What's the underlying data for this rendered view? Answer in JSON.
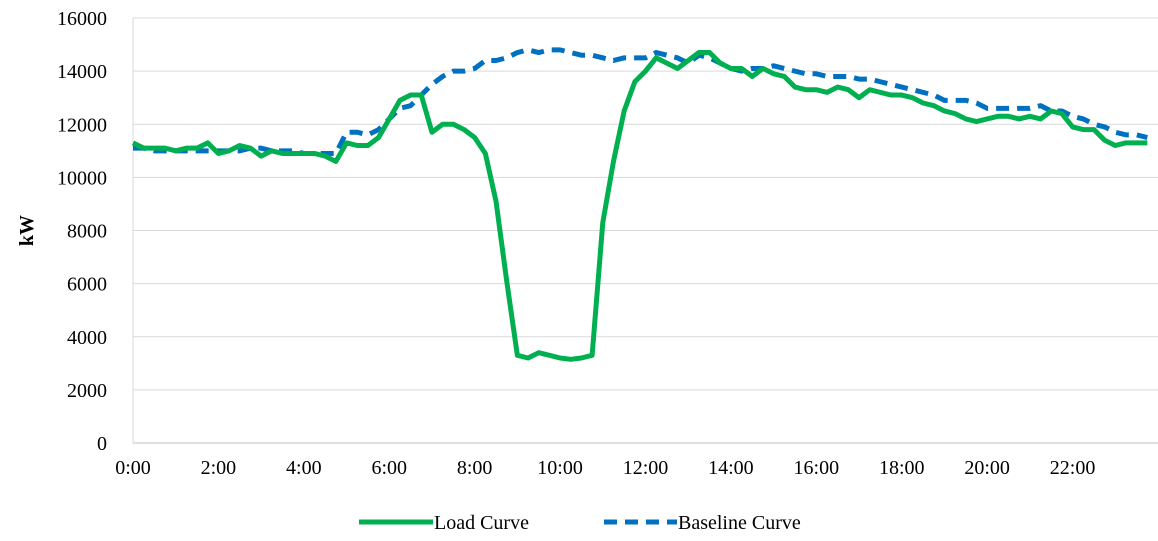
{
  "chart_data": {
    "type": "line",
    "title": "",
    "xlabel": "",
    "ylabel": "kW",
    "ylim": [
      0,
      16000
    ],
    "yticks": [
      0,
      2000,
      4000,
      6000,
      8000,
      10000,
      12000,
      14000,
      16000
    ],
    "xlim_hours": [
      0,
      24
    ],
    "xticks": [
      "0:00",
      "2:00",
      "4:00",
      "6:00",
      "8:00",
      "10:00",
      "12:00",
      "14:00",
      "16:00",
      "18:00",
      "20:00",
      "22:00"
    ],
    "grid": "horizontal",
    "legend_position": "bottom",
    "x": [
      "0:00",
      "0:15",
      "0:30",
      "0:45",
      "1:00",
      "1:15",
      "1:30",
      "1:45",
      "2:00",
      "2:15",
      "2:30",
      "2:45",
      "3:00",
      "3:15",
      "3:30",
      "3:45",
      "4:00",
      "4:15",
      "4:30",
      "4:45",
      "5:00",
      "5:15",
      "5:30",
      "5:45",
      "6:00",
      "6:15",
      "6:30",
      "6:45",
      "7:00",
      "7:15",
      "7:30",
      "7:45",
      "8:00",
      "8:15",
      "8:30",
      "8:45",
      "9:00",
      "9:15",
      "9:30",
      "9:45",
      "10:00",
      "10:15",
      "10:30",
      "10:45",
      "11:00",
      "11:15",
      "11:30",
      "11:45",
      "12:00",
      "12:15",
      "12:30",
      "12:45",
      "13:00",
      "13:15",
      "13:30",
      "13:45",
      "14:00",
      "14:15",
      "14:30",
      "14:45",
      "15:00",
      "15:15",
      "15:30",
      "15:45",
      "16:00",
      "16:15",
      "16:30",
      "16:45",
      "17:00",
      "17:15",
      "17:30",
      "17:45",
      "18:00",
      "18:15",
      "18:30",
      "18:45",
      "19:00",
      "19:15",
      "19:30",
      "19:45",
      "20:00",
      "20:15",
      "20:30",
      "20:45",
      "21:00",
      "21:15",
      "21:30",
      "21:45",
      "22:00",
      "22:15",
      "22:30",
      "22:45",
      "23:00",
      "23:15",
      "23:30",
      "23:45"
    ],
    "series": [
      {
        "name": "Load Curve",
        "color": "#00b050",
        "style": "solid",
        "values": [
          11300,
          11100,
          11100,
          11100,
          11000,
          11100,
          11100,
          11300,
          10900,
          11000,
          11200,
          11100,
          10800,
          11000,
          10900,
          10900,
          10900,
          10900,
          10800,
          10600,
          11300,
          11200,
          11200,
          11500,
          12200,
          12900,
          13100,
          13100,
          11700,
          12000,
          12000,
          11800,
          11500,
          10900,
          9100,
          6100,
          3300,
          3200,
          3400,
          3300,
          3200,
          3150,
          3200,
          3300,
          8300,
          10600,
          12500,
          13600,
          14000,
          14500,
          14300,
          14100,
          14400,
          14700,
          14700,
          14300,
          14100,
          14100,
          13800,
          14100,
          13900,
          13800,
          13400,
          13300,
          13300,
          13200,
          13400,
          13300,
          13000,
          13300,
          13200,
          13100,
          13100,
          13000,
          12800,
          12700,
          12500,
          12400,
          12200,
          12100,
          12200,
          12300,
          12300,
          12200,
          12300,
          12200,
          12500,
          12400,
          11900,
          11800,
          11800,
          11400,
          11200,
          11300,
          11300,
          11300
        ]
      },
      {
        "name": "Baseline Curve",
        "color": "#0070c0",
        "style": "dashed",
        "values": [
          11100,
          11100,
          11000,
          11000,
          11000,
          11000,
          11000,
          11000,
          11000,
          11000,
          11000,
          11100,
          11100,
          11000,
          11000,
          11000,
          10900,
          10900,
          10900,
          10900,
          11700,
          11700,
          11600,
          11800,
          12200,
          12600,
          12700,
          13100,
          13500,
          13800,
          14000,
          14000,
          14100,
          14400,
          14400,
          14500,
          14700,
          14800,
          14700,
          14800,
          14800,
          14700,
          14600,
          14600,
          14500,
          14400,
          14500,
          14500,
          14500,
          14700,
          14600,
          14500,
          14300,
          14600,
          14500,
          14300,
          14100,
          14000,
          14100,
          14100,
          14200,
          14100,
          14000,
          13900,
          13900,
          13800,
          13800,
          13800,
          13700,
          13700,
          13600,
          13500,
          13400,
          13300,
          13200,
          13100,
          12900,
          12900,
          12900,
          12800,
          12600,
          12600,
          12600,
          12600,
          12600,
          12700,
          12500,
          12500,
          12300,
          12200,
          12000,
          11900,
          11700,
          11600,
          11600,
          11500
        ]
      }
    ]
  }
}
